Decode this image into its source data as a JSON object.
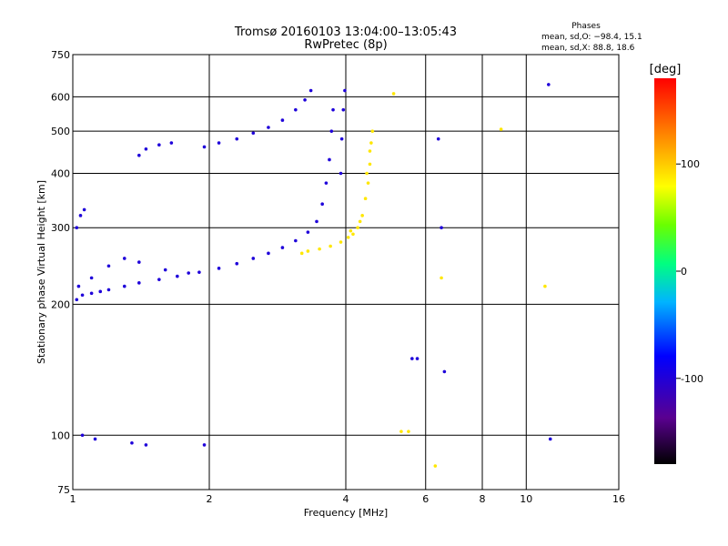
{
  "chart_data": {
    "type": "scatter",
    "title": "Tromsø 20160103 13:04:00–13:05:43",
    "subtitle": "RwPretec (8p)",
    "xlabel": "Frequency [MHz]",
    "ylabel": "Stationary phase Virtual Height [km]",
    "x_scale": "log",
    "y_scale": "log",
    "xlim": [
      1,
      16
    ],
    "ylim": [
      75,
      750
    ],
    "x_ticks": [
      1,
      2,
      4,
      6,
      8,
      10,
      16
    ],
    "y_ticks": [
      75,
      100,
      200,
      300,
      400,
      500,
      600,
      750
    ],
    "grid": true,
    "phase_stats": {
      "heading": "Phases",
      "line_o": "mean, sd,O: −98.4, 15.1",
      "line_x": "mean, sd,X: 88.8, 18.6"
    },
    "colorbar": {
      "label": "[deg]",
      "range": [
        -180,
        180
      ],
      "ticks": [
        100,
        0,
        -100
      ],
      "colormap": "rainbow"
    },
    "series": [
      {
        "mode": "O",
        "mean_phase_deg": -98.4,
        "sd_phase_deg": 15.1,
        "points": [
          [
            1.02,
            205
          ],
          [
            1.05,
            210
          ],
          [
            1.1,
            212
          ],
          [
            1.15,
            214
          ],
          [
            1.2,
            216
          ],
          [
            1.3,
            220
          ],
          [
            1.4,
            224
          ],
          [
            1.55,
            228
          ],
          [
            1.7,
            232
          ],
          [
            1.9,
            237
          ],
          [
            2.1,
            242
          ],
          [
            2.3,
            248
          ],
          [
            2.5,
            255
          ],
          [
            2.7,
            262
          ],
          [
            2.9,
            270
          ],
          [
            3.1,
            280
          ],
          [
            3.3,
            293
          ],
          [
            3.45,
            310
          ],
          [
            3.55,
            340
          ],
          [
            3.62,
            380
          ],
          [
            3.68,
            430
          ],
          [
            3.72,
            500
          ],
          [
            3.75,
            560
          ],
          [
            1.03,
            220
          ],
          [
            1.1,
            230
          ],
          [
            1.2,
            245
          ],
          [
            1.3,
            255
          ],
          [
            1.4,
            250
          ],
          [
            1.6,
            240
          ],
          [
            1.8,
            236
          ],
          [
            1.02,
            300
          ],
          [
            1.04,
            320
          ],
          [
            1.06,
            330
          ],
          [
            1.4,
            440
          ],
          [
            1.45,
            455
          ],
          [
            1.55,
            465
          ],
          [
            1.65,
            470
          ],
          [
            1.95,
            460
          ],
          [
            2.1,
            470
          ],
          [
            2.3,
            480
          ],
          [
            2.5,
            495
          ],
          [
            2.7,
            510
          ],
          [
            2.9,
            530
          ],
          [
            3.1,
            560
          ],
          [
            3.25,
            590
          ],
          [
            3.35,
            620
          ],
          [
            3.9,
            400
          ],
          [
            3.92,
            480
          ],
          [
            3.95,
            560
          ],
          [
            3.98,
            620
          ],
          [
            1.05,
            100
          ],
          [
            1.12,
            98
          ],
          [
            1.35,
            96
          ],
          [
            1.45,
            95
          ],
          [
            1.95,
            95
          ],
          [
            5.6,
            150
          ],
          [
            5.75,
            150
          ],
          [
            6.4,
            480
          ],
          [
            6.5,
            300
          ],
          [
            6.6,
            140
          ],
          [
            11.2,
            640
          ],
          [
            11.3,
            98
          ]
        ]
      },
      {
        "mode": "X",
        "mean_phase_deg": 88.8,
        "sd_phase_deg": 18.6,
        "points": [
          [
            3.5,
            268
          ],
          [
            3.7,
            272
          ],
          [
            3.9,
            278
          ],
          [
            4.05,
            285
          ],
          [
            4.15,
            290
          ],
          [
            4.25,
            300
          ],
          [
            4.35,
            320
          ],
          [
            4.42,
            350
          ],
          [
            4.48,
            380
          ],
          [
            4.52,
            420
          ],
          [
            4.55,
            470
          ],
          [
            4.58,
            500
          ],
          [
            3.2,
            262
          ],
          [
            3.3,
            265
          ],
          [
            4.1,
            295
          ],
          [
            4.3,
            310
          ],
          [
            4.45,
            400
          ],
          [
            4.52,
            450
          ],
          [
            5.1,
            610
          ],
          [
            5.3,
            102
          ],
          [
            5.5,
            102
          ],
          [
            6.3,
            85
          ],
          [
            6.5,
            230
          ],
          [
            8.8,
            505
          ],
          [
            11.0,
            220
          ]
        ]
      }
    ]
  }
}
